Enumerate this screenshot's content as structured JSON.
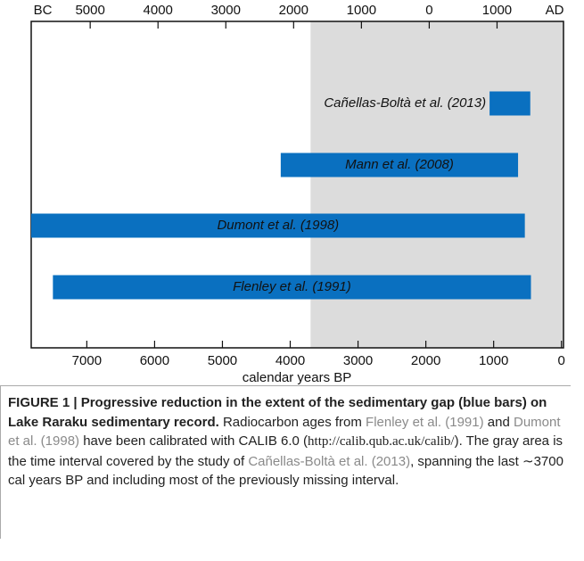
{
  "chart_data": {
    "type": "range_bar",
    "xlabel": "calendar years BP",
    "xlim": [
      7820,
      -30
    ],
    "xticks": [
      7000,
      6000,
      5000,
      4000,
      3000,
      2000,
      1000,
      0
    ],
    "x2lim": [
      -5870,
      1980
    ],
    "x2ticks": [
      {
        "value": -5000,
        "label": "5000"
      },
      {
        "value": -4000,
        "label": "4000"
      },
      {
        "value": -3000,
        "label": "3000"
      },
      {
        "value": -2000,
        "label": "2000"
      },
      {
        "value": -1000,
        "label": "1000"
      },
      0,
      1000
    ],
    "x2_left_label": "BC",
    "x2_right_label": "AD",
    "shaded_from": 3700,
    "shade_color": "#dcdcdc",
    "color": "#0a70c0",
    "bars": [
      {
        "name": "Cañellas-Boltà et al. (2013)",
        "start": 1060,
        "end": 460
      },
      {
        "name": "Mann et al. (2008)",
        "start": 4140,
        "end": 640
      },
      {
        "name": "Dumont et al. (1998)",
        "start": 7820,
        "end": 540
      },
      {
        "name": "Flenley et al. (1991)",
        "start": 7500,
        "end": 450
      }
    ]
  },
  "caption": [
    {
      "text": "FIGURE 1 | Progressive reduction in the extent of the sedimentary gap (blue bars) on Lake Raraku sedimentary record.",
      "style": "bold"
    },
    {
      "text": " Radiocarbon ages from ",
      "style": "plain"
    },
    {
      "text": "Flenley et al. (1991)",
      "style": "link"
    },
    {
      "text": " and ",
      "style": "plain"
    },
    {
      "text": "Dumont et al. (1998)",
      "style": "link"
    },
    {
      "text": " have been calibrated with CALIB 6.0 (",
      "style": "plain"
    },
    {
      "text": "http://calib.qub.ac.uk/calib/",
      "style": "url"
    },
    {
      "text": "). The gray area is the time interval covered by the study of ",
      "style": "plain"
    },
    {
      "text": "Cañellas-Boltà et al. (2013)",
      "style": "link"
    },
    {
      "text": ", spanning the last ∼3700 cal years BP and including most of the previously missing interval.",
      "style": "plain"
    }
  ]
}
